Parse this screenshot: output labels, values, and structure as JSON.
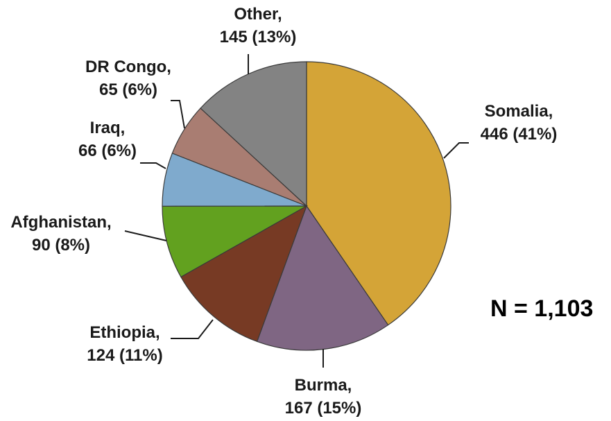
{
  "chart_data": {
    "type": "pie",
    "total_label": "N = 1,103",
    "slices": [
      {
        "name": "Somalia",
        "value": 446,
        "line1": "Somalia,",
        "line2": "446 (41%)",
        "color": "#d4a437"
      },
      {
        "name": "Burma",
        "value": 167,
        "line1": "Burma,",
        "line2": "167 (15%)",
        "color": "#7f6683"
      },
      {
        "name": "Ethiopia",
        "value": 124,
        "line1": "Ethiopia,",
        "line2": "124 (11%)",
        "color": "#773a24"
      },
      {
        "name": "Afghanistan",
        "value": 90,
        "line1": "Afghanistan,",
        "line2": "90 (8%)",
        "color": "#62a11f"
      },
      {
        "name": "Iraq",
        "value": 66,
        "line1": "Iraq,",
        "line2": "66 (6%)",
        "color": "#7faacd"
      },
      {
        "name": "DR Congo",
        "value": 65,
        "line1": "DR Congo,",
        "line2": "65 (6%)",
        "color": "#a97d72"
      },
      {
        "name": "Other",
        "value": 145,
        "line1": "Other,",
        "line2": "145 (13%)",
        "color": "#838383"
      }
    ]
  }
}
